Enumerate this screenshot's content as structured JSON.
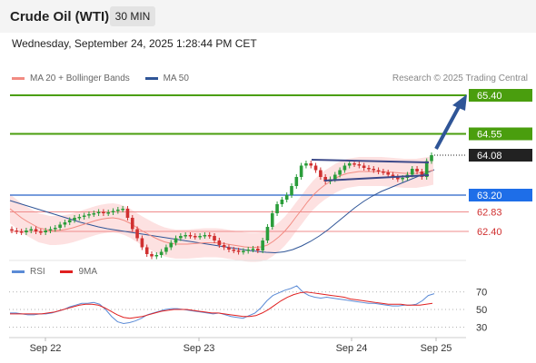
{
  "header": {
    "title": "Crude Oil (WTI)",
    "timeframe": "30 MIN"
  },
  "datetime": "Wednesday, September 24, 2025 1:28:44 PM CET",
  "legend": [
    {
      "label": "MA 20 + Bollinger Bands",
      "color": "#f28b82"
    },
    {
      "label": "MA 50",
      "color": "#2f5597"
    }
  ],
  "credit": "Research © 2025 Trading Central",
  "rsi_legend": [
    {
      "label": "RSI",
      "color": "#5b8bd6"
    },
    {
      "label": "9MA",
      "color": "#e02020"
    }
  ],
  "colors": {
    "up": "#2a9d3a",
    "down": "#d03030",
    "resistance": "#4a9e0e",
    "support": "#4a7bd0",
    "target": "#ef8b8b",
    "last": "#222222",
    "arrow": "#2f5597",
    "bands": "#fddede",
    "ma20": "#f28b82",
    "ma50": "#2f5597"
  },
  "chart_data": [
    {
      "type": "candlestick",
      "instrument": "Crude Oil (WTI)",
      "timeframe": "30 MIN",
      "x_labels": [
        "Sep 22",
        "Sep 23",
        "Sep 24",
        "Sep 25"
      ],
      "ylim": [
        61.7,
        65.6
      ],
      "levels": [
        {
          "value": 65.4,
          "label": "65.40",
          "kind": "resistance"
        },
        {
          "value": 64.55,
          "label": "64.55",
          "kind": "resistance"
        },
        {
          "value": 64.08,
          "label": "64.08",
          "kind": "last"
        },
        {
          "value": 63.2,
          "label": "63.20",
          "kind": "support"
        },
        {
          "value": 62.83,
          "label": "62.83",
          "kind": "target"
        },
        {
          "value": 62.4,
          "label": "62.40",
          "kind": "target"
        }
      ],
      "close": [
        62.42,
        62.4,
        62.38,
        62.42,
        62.45,
        62.4,
        62.38,
        62.42,
        62.45,
        62.48,
        62.55,
        62.6,
        62.65,
        62.7,
        62.72,
        62.75,
        62.78,
        62.8,
        62.83,
        62.8,
        62.82,
        62.85,
        62.88,
        62.9,
        62.7,
        62.45,
        62.25,
        62.05,
        61.9,
        61.85,
        61.88,
        61.95,
        62.05,
        62.15,
        62.25,
        62.3,
        62.32,
        62.3,
        62.28,
        62.3,
        62.32,
        62.3,
        62.2,
        62.1,
        62.05,
        62.0,
        61.98,
        61.95,
        61.97,
        62.0,
        62.02,
        61.98,
        62.2,
        62.5,
        62.8,
        63.0,
        63.1,
        63.2,
        63.4,
        63.6,
        63.85,
        63.9,
        63.85,
        63.75,
        63.6,
        63.5,
        63.55,
        63.65,
        63.75,
        63.85,
        63.9,
        63.88,
        63.85,
        63.8,
        63.78,
        63.75,
        63.72,
        63.7,
        63.65,
        63.6,
        63.55,
        63.58,
        63.65,
        63.78,
        63.72,
        63.6,
        63.95,
        64.08
      ],
      "ma20": [
        62.9,
        62.8,
        62.7,
        62.62,
        62.55,
        62.48,
        62.45,
        62.42,
        62.42,
        62.43,
        62.45,
        62.48,
        62.52,
        62.56,
        62.6,
        62.64,
        62.67,
        62.69,
        62.7,
        62.68,
        62.64,
        62.58,
        62.5,
        62.42,
        62.35,
        62.28,
        62.22,
        62.17,
        62.14,
        62.12,
        62.12,
        62.12,
        62.13,
        62.14,
        62.15,
        62.15,
        62.15,
        62.14,
        62.12,
        62.1,
        62.08,
        62.06,
        62.05,
        62.05,
        62.06,
        62.1,
        62.18,
        62.28,
        62.4,
        62.55,
        62.72,
        62.88,
        63.05,
        63.2,
        63.32,
        63.42,
        63.5,
        63.58,
        63.64,
        63.68,
        63.7,
        63.72,
        63.72,
        63.72,
        63.72,
        63.72,
        63.71,
        63.7,
        63.69,
        63.68,
        63.68,
        63.68,
        63.7,
        63.72,
        63.75
      ],
      "ma50": [
        63.08,
        63.02,
        62.96,
        62.9,
        62.84,
        62.78,
        62.72,
        62.66,
        62.6,
        62.55,
        62.5,
        62.46,
        62.43,
        62.4,
        62.37,
        62.34,
        62.31,
        62.28,
        62.25,
        62.22,
        62.19,
        62.16,
        62.13,
        62.1,
        62.07,
        62.04,
        62.01,
        61.98,
        61.96,
        61.94,
        61.93,
        61.95,
        62.0,
        62.08,
        62.18,
        62.3,
        62.44,
        62.6,
        62.76,
        62.92,
        63.06,
        63.18,
        63.28,
        63.36,
        63.44,
        63.52,
        63.6,
        63.68,
        63.76
      ]
    },
    {
      "type": "line",
      "title": "RSI",
      "series": [
        {
          "name": "RSI",
          "values": [
            46,
            46,
            45,
            44,
            44,
            45,
            45,
            46,
            48,
            50,
            53,
            55,
            57,
            57,
            58,
            56,
            50,
            42,
            36,
            34,
            35,
            37,
            40,
            44,
            46,
            48,
            50,
            51,
            51,
            50,
            49,
            48,
            47,
            46,
            45,
            46,
            44,
            42,
            41,
            40,
            43,
            46,
            52,
            60,
            66,
            69,
            72,
            74,
            77,
            70,
            66,
            64,
            63,
            64,
            63,
            62,
            61,
            60,
            59,
            58,
            57,
            57,
            56,
            55,
            54,
            54,
            55,
            55,
            56,
            60,
            66,
            68
          ]
        },
        {
          "name": "9MA",
          "values": [
            45,
            45,
            45,
            45,
            45,
            45,
            46,
            47,
            49,
            51,
            53,
            55,
            56,
            56,
            55,
            52,
            48,
            44,
            41,
            40,
            41,
            42,
            44,
            46,
            48,
            49,
            50,
            50,
            50,
            49,
            48,
            47,
            46,
            46,
            45,
            44,
            43,
            42,
            42,
            43,
            46,
            50,
            55,
            60,
            64,
            67,
            69,
            70,
            69,
            68,
            67,
            66,
            65,
            64,
            62,
            61,
            60,
            59,
            58,
            57,
            56,
            56,
            56,
            55,
            55,
            55,
            56,
            57
          ]
        }
      ],
      "y_ticks": [
        70,
        50,
        30
      ],
      "ylim": [
        20,
        78
      ]
    }
  ]
}
